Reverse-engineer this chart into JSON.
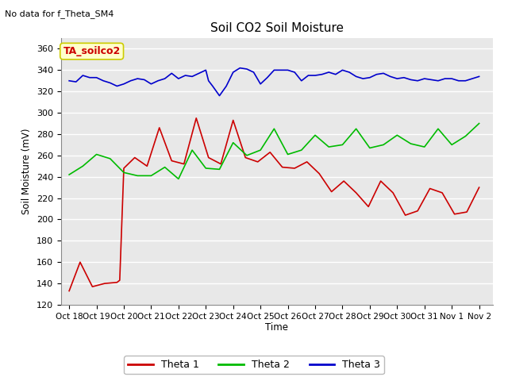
{
  "title": "Soil CO2 Soil Moisture",
  "no_data_text": "No data for f_Theta_SM4",
  "ylabel": "Soil Moisture (mV)",
  "xlabel": "Time",
  "ylim": [
    120,
    370
  ],
  "yticks": [
    120,
    140,
    160,
    180,
    200,
    220,
    240,
    260,
    280,
    300,
    320,
    340,
    360
  ],
  "fig_bg": "#ffffff",
  "plot_bg_color": "#e8e8e8",
  "legend_items": [
    "Theta 1",
    "Theta 2",
    "Theta 3"
  ],
  "legend_colors": [
    "#cc0000",
    "#00bb00",
    "#0000cc"
  ],
  "annotation_text": "TA_soilco2",
  "annotation_bg": "#ffffcc",
  "annotation_border": "#cccc00",
  "x_tick_labels": [
    "Oct 18",
    "Oct 19",
    "Oct 20",
    "Oct 21",
    "Oct 22",
    "Oct 23",
    "Oct 24",
    "Oct 25",
    "Oct 26",
    "Oct 27",
    "Oct 28",
    "Oct 29",
    "Oct 30",
    "Oct 31",
    "Nov 1",
    "Nov 2"
  ],
  "theta1_x": [
    0,
    0.4,
    0.85,
    1.3,
    1.75,
    1.85,
    2.0,
    2.4,
    2.85,
    3.3,
    3.75,
    4.2,
    4.65,
    5.1,
    5.55,
    6.0,
    6.45,
    6.9,
    7.35,
    7.8,
    8.25,
    8.7,
    9.15,
    9.6,
    10.05,
    10.5,
    10.95,
    11.4,
    11.85,
    12.3,
    12.75,
    13.2,
    13.65,
    14.1,
    14.55,
    15.0
  ],
  "theta1_y": [
    133,
    160,
    137,
    140,
    141,
    143,
    248,
    258,
    250,
    286,
    255,
    252,
    295,
    258,
    252,
    293,
    258,
    254,
    263,
    249,
    248,
    254,
    243,
    226,
    236,
    225,
    212,
    236,
    225,
    204,
    208,
    229,
    225,
    205,
    207,
    230
  ],
  "theta2_x": [
    0,
    0.5,
    1.0,
    1.5,
    2.0,
    2.5,
    3.0,
    3.5,
    4.0,
    4.5,
    5.0,
    5.5,
    6.0,
    6.5,
    7.0,
    7.5,
    8.0,
    8.5,
    9.0,
    9.5,
    10.0,
    10.5,
    11.0,
    11.5,
    12.0,
    12.5,
    13.0,
    13.5,
    14.0,
    14.5,
    15.0
  ],
  "theta2_y": [
    242,
    250,
    261,
    257,
    244,
    241,
    241,
    249,
    238,
    265,
    248,
    247,
    272,
    260,
    265,
    285,
    261,
    265,
    279,
    268,
    270,
    285,
    267,
    270,
    279,
    271,
    268,
    285,
    270,
    278,
    290
  ],
  "theta3_x": [
    0,
    0.25,
    0.5,
    0.75,
    1.0,
    1.25,
    1.5,
    1.75,
    2.0,
    2.25,
    2.5,
    2.75,
    3.0,
    3.25,
    3.5,
    3.75,
    4.0,
    4.25,
    4.5,
    4.75,
    5.0,
    5.1,
    5.25,
    5.5,
    5.75,
    6.0,
    6.25,
    6.5,
    6.75,
    7.0,
    7.25,
    7.5,
    7.75,
    8.0,
    8.25,
    8.5,
    8.75,
    9.0,
    9.25,
    9.5,
    9.75,
    10.0,
    10.25,
    10.5,
    10.75,
    11.0,
    11.25,
    11.5,
    11.75,
    12.0,
    12.25,
    12.5,
    12.75,
    13.0,
    13.25,
    13.5,
    13.75,
    14.0,
    14.25,
    14.5,
    14.75,
    15.0
  ],
  "theta3_y": [
    330,
    329,
    335,
    333,
    333,
    330,
    328,
    325,
    327,
    330,
    332,
    331,
    327,
    330,
    332,
    337,
    332,
    335,
    334,
    337,
    340,
    330,
    325,
    316,
    325,
    338,
    342,
    341,
    338,
    327,
    333,
    340,
    340,
    340,
    338,
    330,
    335,
    335,
    336,
    338,
    336,
    340,
    338,
    334,
    332,
    333,
    336,
    337,
    334,
    332,
    333,
    331,
    330,
    332,
    331,
    330,
    332,
    332,
    330,
    330,
    332,
    334
  ]
}
